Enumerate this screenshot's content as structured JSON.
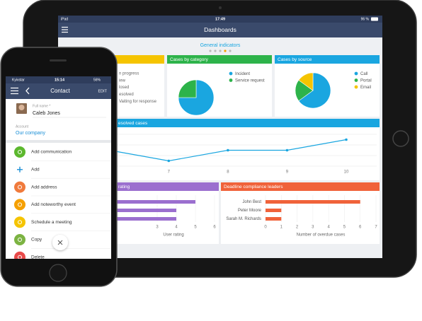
{
  "tablet": {
    "status": {
      "device": "iPad",
      "time": "17:49",
      "battery": "96 %"
    },
    "title": "Dashboards",
    "section": "General indicators",
    "status_panel": {
      "items": [
        "n progress",
        "iew",
        "losed",
        "esolved",
        "Vaiting for response"
      ]
    },
    "category_panel": {
      "title": "Cases by category",
      "type": "pie",
      "categories": [
        "Incident",
        "Service request"
      ],
      "values": [
        75,
        25
      ],
      "colors": [
        "#1aa6e0",
        "#2db34a"
      ]
    },
    "source_panel": {
      "title": "Cases by source",
      "type": "pie",
      "categories": [
        "Call",
        "Portal",
        "Email"
      ],
      "values": [
        65,
        20,
        15
      ],
      "colors": [
        "#1aa6e0",
        "#2db34a",
        "#f5c400"
      ]
    },
    "resolved_panel": {
      "title": "esolved cases",
      "type": "line",
      "color": "#1aa6e0",
      "x": [
        6,
        7,
        8,
        9,
        10
      ],
      "values": [
        15,
        5,
        15,
        15,
        25
      ],
      "xlim": [
        5.13,
        10.61
      ],
      "xticks": [
        7,
        8,
        9,
        10
      ],
      "ylim": [
        0,
        30
      ]
    },
    "rating_panel": {
      "title": "rating",
      "type": "hbar",
      "color": "#9b6fcf",
      "values": [
        5,
        4,
        4
      ],
      "xlim": [
        0,
        6
      ],
      "xticks": [
        3,
        4,
        5,
        6
      ],
      "xlabel": "User rating"
    },
    "deadline_panel": {
      "title": "Deadline compliance leaders",
      "type": "hbar",
      "color": "#f0623a",
      "categories": [
        "John Best",
        "Peter Moore",
        "Sarah M. Richards"
      ],
      "values": [
        6,
        1,
        1
      ],
      "xlim": [
        0,
        7
      ],
      "xticks": [
        0,
        1,
        2,
        3,
        4,
        5,
        6,
        7
      ],
      "xlabel": "Number of overdue cases"
    }
  },
  "phone": {
    "status": {
      "carrier": "Kyivstar",
      "time": "15:14",
      "battery": "56%"
    },
    "title": "Contact",
    "edit": "EDIT",
    "full_name_label": "Full name *",
    "full_name": "Caleb Jones",
    "account_label": "Account",
    "account": "Our company",
    "actions": [
      {
        "label": "Add communication",
        "color": "#5cb82e"
      },
      {
        "label": "Add",
        "color": "#ffffff"
      },
      {
        "label": "Add address",
        "color": "#f07a3c"
      },
      {
        "label": "Add noteworthy event",
        "color": "#f5a000"
      },
      {
        "label": "Schedule a meeting",
        "color": "#f5c400"
      },
      {
        "label": "Copy",
        "color": "#7cb342"
      },
      {
        "label": "Delete",
        "color": "#e84a4a"
      }
    ]
  }
}
